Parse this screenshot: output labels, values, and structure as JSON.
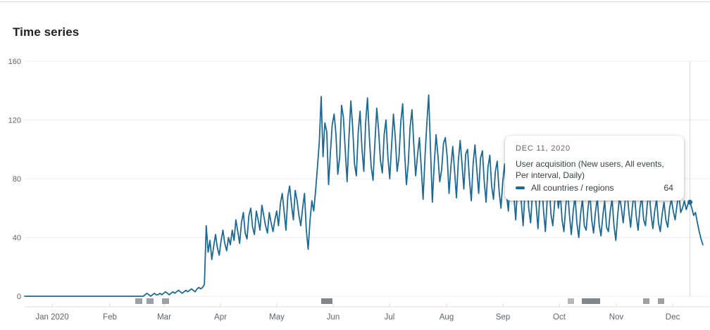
{
  "panel": {
    "title": "Time series"
  },
  "colors": {
    "line": "#1b6a96",
    "grid": "#ececec",
    "axis": "#dadce0",
    "hover_line": "#d8d8d8",
    "tick_label": "#5f6368",
    "marker_light": "#b7babc",
    "marker_mid": "#9aa0a4",
    "marker_dark": "#82878b"
  },
  "tooltip": {
    "date": "DEC 11, 2020",
    "series_label": "User acquisition (New users, All events, Per interval, Daily)",
    "row_label": "All countries / regions",
    "row_value": "64"
  },
  "chart_data": {
    "type": "line",
    "title": "Time series",
    "granularity": "Daily",
    "x_months": [
      "Jan 2020",
      "Feb",
      "Mar",
      "Apr",
      "May",
      "Jun",
      "Jul",
      "Aug",
      "Sep",
      "Oct",
      "Nov",
      "Dec"
    ],
    "y_ticks": [
      0,
      40,
      80,
      120,
      160
    ],
    "ylim": [
      0,
      160
    ],
    "legend_position": "tooltip",
    "grid": "horizontal-only",
    "highlight_point": {
      "date": "Dec 11, 2020",
      "value": 64,
      "index": 359
    },
    "annotation_markers": [
      {
        "x": 192,
        "w": 10,
        "shade": "mid"
      },
      {
        "x": 208,
        "w": 10,
        "shade": "mid"
      },
      {
        "x": 230,
        "w": 10,
        "shade": "mid"
      },
      {
        "x": 456,
        "w": 16,
        "shade": "dark"
      },
      {
        "x": 806,
        "w": 9,
        "shade": "light"
      },
      {
        "x": 826,
        "w": 26,
        "shade": "dark"
      },
      {
        "x": 913,
        "w": 9,
        "shade": "mid"
      },
      {
        "x": 934,
        "w": 9,
        "shade": "mid"
      }
    ],
    "series": [
      {
        "name": "All countries / regions",
        "color": "#1b6a96",
        "values": [
          0,
          0,
          0,
          0,
          0,
          0,
          0,
          0,
          0,
          0,
          0,
          0,
          0,
          0,
          0,
          0,
          0,
          0,
          0,
          0,
          0,
          0,
          0,
          0,
          0,
          0,
          0,
          0,
          0,
          0,
          0,
          0,
          0,
          0,
          0,
          0,
          0,
          0,
          0,
          0,
          0,
          0,
          0,
          0,
          0,
          0,
          0,
          0,
          0,
          0,
          0,
          0,
          0,
          0,
          0,
          0,
          0,
          0,
          0,
          0,
          0,
          0,
          0,
          0,
          0,
          1,
          2,
          1,
          0,
          1,
          2,
          1,
          1,
          2,
          1,
          2,
          3,
          2,
          1,
          2,
          3,
          2,
          3,
          4,
          3,
          2,
          3,
          4,
          3,
          4,
          5,
          4,
          3,
          5,
          6,
          5,
          6,
          8,
          48,
          30,
          38,
          25,
          34,
          42,
          33,
          28,
          38,
          45,
          36,
          31,
          40,
          35,
          45,
          38,
          52,
          44,
          36,
          50,
          57,
          43,
          39,
          55,
          60,
          47,
          42,
          58,
          52,
          45,
          62,
          55,
          48,
          43,
          57,
          50,
          44,
          52,
          58,
          48,
          63,
          70,
          58,
          45,
          68,
          75,
          62,
          52,
          72,
          65,
          55,
          48,
          60,
          70,
          45,
          32,
          52,
          65,
          58,
          72,
          88,
          105,
          136,
          95,
          118,
          112,
          76,
          98,
          117,
          124,
          110,
          83,
          95,
          130,
          122,
          99,
          78,
          108,
          133,
          115,
          90,
          82,
          112,
          126,
          101,
          85,
          118,
          135,
          108,
          88,
          79,
          105,
          128,
          113,
          92,
          84,
          110,
          120,
          95,
          80,
          102,
          124,
          108,
          85,
          95,
          119,
          131,
          98,
          76,
          90,
          115,
          127,
          103,
          82,
          96,
          108,
          88,
          66,
          94,
          117,
          137,
          100,
          64,
          90,
          110,
          96,
          78,
          86,
          104,
          108,
          95,
          70,
          88,
          102,
          85,
          67,
          92,
          106,
          90,
          73,
          97,
          100,
          80,
          65,
          90,
          103,
          86,
          70,
          94,
          99,
          78,
          64,
          88,
          96,
          75,
          66,
          85,
          92,
          72,
          60,
          78,
          90,
          70,
          58,
          80,
          88,
          68,
          52,
          76,
          86,
          64,
          48,
          72,
          82,
          60,
          50,
          70,
          80,
          62,
          46,
          68,
          78,
          58,
          44,
          66,
          76,
          56,
          48,
          64,
          74,
          60,
          70,
          52,
          44,
          62,
          72,
          55,
          42,
          58,
          68,
          50,
          40,
          56,
          66,
          48,
          45,
          60,
          70,
          52,
          43,
          57,
          67,
          49,
          41,
          55,
          65,
          47,
          44,
          58,
          66,
          48,
          38,
          55,
          68,
          60,
          50,
          64,
          72,
          58,
          47,
          62,
          70,
          55,
          45,
          60,
          68,
          52,
          48,
          63,
          71,
          56,
          46,
          58,
          66,
          50,
          44,
          56,
          64,
          52,
          47,
          60,
          66,
          58,
          52,
          62,
          70,
          57,
          60,
          65,
          59,
          63,
          64,
          60,
          55,
          57,
          50,
          44,
          39,
          35
        ]
      }
    ]
  }
}
